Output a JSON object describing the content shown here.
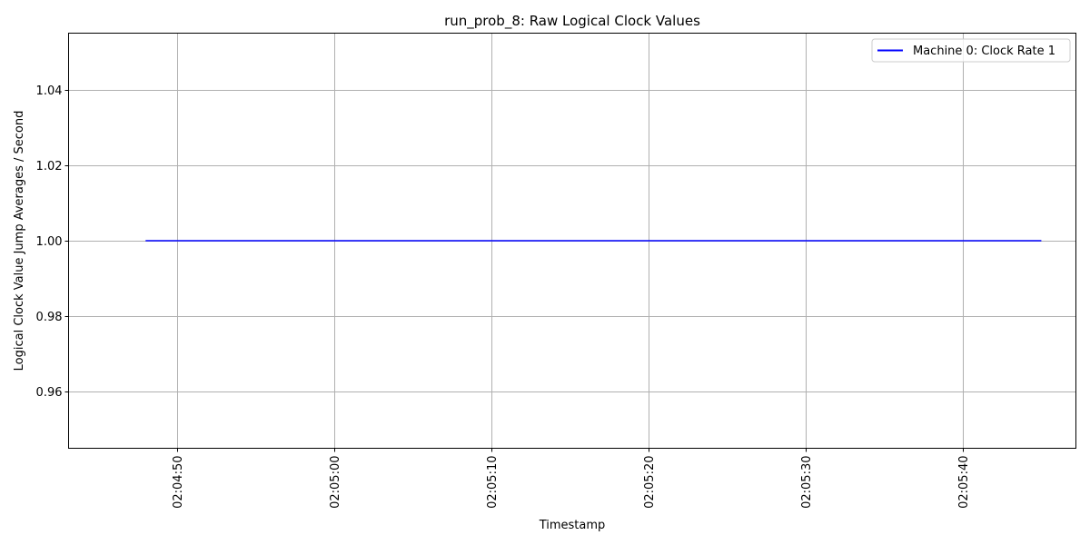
{
  "chart_data": {
    "type": "line",
    "title": "run_prob_8: Raw Logical Clock Values",
    "xlabel": "Timestamp",
    "ylabel": "Logical Clock Value Jump Averages / Second",
    "x_tick_labels": [
      "02:04:50",
      "02:05:00",
      "02:05:10",
      "02:05:20",
      "02:05:30",
      "02:05:40"
    ],
    "x_tick_seconds": [
      50,
      60,
      70,
      80,
      90,
      100
    ],
    "x_seconds_offset_from": "02:04:00",
    "xlim_seconds": [
      43.1,
      107.2
    ],
    "y_ticks": [
      0.96,
      0.98,
      1.0,
      1.02,
      1.04
    ],
    "y_tick_labels": [
      "0.96",
      "0.98",
      "1.00",
      "1.02",
      "1.04"
    ],
    "ylim": [
      0.945,
      1.055
    ],
    "grid": true,
    "legend_position": "top-right",
    "series": [
      {
        "name": "Machine 0: Clock Rate 1",
        "color": "#0000ff",
        "x_seconds": [
          48.0,
          105.0
        ],
        "values": [
          1.0,
          1.0
        ]
      }
    ]
  }
}
